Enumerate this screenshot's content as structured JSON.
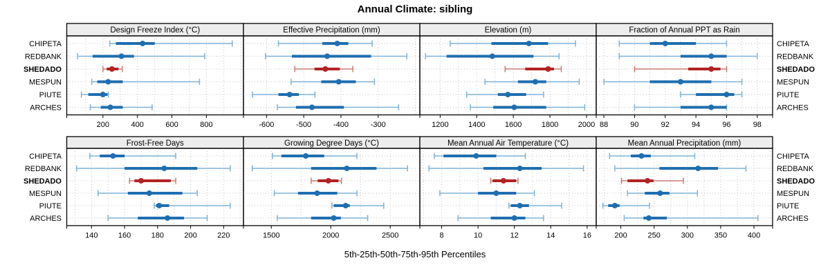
{
  "chart_data": {
    "type": "scatter",
    "subtype": "trellis-percentile-whisker-panels",
    "title": "Annual Climate: sibling",
    "caption": "5th-25th-50th-75th-95th Percentiles",
    "percentiles": [
      5,
      25,
      50,
      75,
      95
    ],
    "sites": [
      "CHIPETA",
      "REDBANK",
      "SHEDADO",
      "MESPUN",
      "PIUTE",
      "ARCHES"
    ],
    "highlight_site": "SHEDADO",
    "legend_position": "none",
    "grid": "dotted",
    "colors": {
      "series_thick": "#1f6eb0",
      "series_thin": "#7fb2d7",
      "highlight_thick": "#b22222",
      "highlight_thin": "#cb7a72",
      "strip_bg": "#ededed",
      "grid_line": "#c3c3c3",
      "border": "#000000"
    },
    "panels": [
      {
        "label": "Design Freeze Index (°C)",
        "row": 0,
        "col": 0,
        "xlim": [
          -10,
          1015
        ],
        "ticks": [
          200,
          400,
          600,
          800
        ],
        "grid_step": 100,
        "values": [
          [
            240,
            275,
            430,
            500,
            950
          ],
          [
            53,
            140,
            307,
            380,
            790
          ],
          [
            200,
            222,
            252,
            290,
            312
          ],
          [
            135,
            167,
            230,
            315,
            760
          ],
          [
            75,
            115,
            200,
            227,
            232
          ],
          [
            127,
            187,
            243,
            315,
            485
          ]
        ]
      },
      {
        "label": "Effective Precipitation (mm)",
        "row": 0,
        "col": 1,
        "xlim": [
          -662,
          -188
        ],
        "ticks": [
          -600,
          -500,
          -400,
          -300
        ],
        "grid_step": 100,
        "values": [
          [
            -568,
            -450,
            -410,
            -380,
            -316
          ],
          [
            -603,
            -532,
            -437,
            -319,
            -223
          ],
          [
            -524,
            -471,
            -442,
            -403,
            -368
          ],
          [
            -534,
            -453,
            -406,
            -360,
            -310
          ],
          [
            -638,
            -568,
            -538,
            -513,
            -470
          ],
          [
            -571,
            -521,
            -478,
            -392,
            -245
          ]
        ]
      },
      {
        "label": "Elevation (m)",
        "row": 0,
        "col": 2,
        "xlim": [
          1089,
          2053
        ],
        "ticks": [
          1200,
          1400,
          1600,
          1800,
          2000
        ],
        "grid_step": 100,
        "values": [
          [
            1255,
            1480,
            1685,
            1790,
            1940
          ],
          [
            1120,
            1235,
            1485,
            1710,
            1850
          ],
          [
            1555,
            1665,
            1790,
            1822,
            1862
          ],
          [
            1445,
            1625,
            1720,
            1780,
            1960
          ],
          [
            1345,
            1515,
            1570,
            1670,
            1765
          ],
          [
            1365,
            1490,
            1605,
            1780,
            1990
          ]
        ]
      },
      {
        "label": "Fraction of Annual PPT as Rain",
        "row": 0,
        "col": 3,
        "xlim": [
          87.5,
          99.0
        ],
        "ticks": [
          88,
          90,
          92,
          94,
          96,
          98
        ],
        "grid_step": 1,
        "values": [
          [
            89,
            91,
            92,
            94,
            96
          ],
          [
            89,
            93,
            95,
            96,
            98
          ],
          [
            90,
            93.5,
            95,
            95.6,
            96
          ],
          [
            88,
            91,
            93,
            95,
            97
          ],
          [
            93,
            94,
            96,
            96.5,
            97
          ],
          [
            90,
            93,
            95,
            96,
            96
          ]
        ]
      },
      {
        "label": "Frost-Free Days",
        "row": 1,
        "col": 0,
        "xlim": [
          125,
          232
        ],
        "ticks": [
          140,
          160,
          180,
          200,
          220
        ],
        "grid_step": 10,
        "values": [
          [
            139,
            145,
            153,
            160,
            191
          ],
          [
            131,
            160,
            184,
            204,
            224
          ],
          [
            163,
            166,
            170,
            188,
            191
          ],
          [
            144,
            162,
            175,
            195,
            204
          ],
          [
            178,
            179,
            181,
            187,
            224
          ],
          [
            150,
            168,
            186,
            196,
            210
          ]
        ]
      },
      {
        "label": "Growing Degree Days (°C)",
        "row": 1,
        "col": 1,
        "xlim": [
          1266,
          2749
        ],
        "ticks": [
          1500,
          2000,
          2500
        ],
        "grid_step": 250,
        "values": [
          [
            1510,
            1585,
            1790,
            1945,
            2220
          ],
          [
            1340,
            1835,
            2135,
            2385,
            2645
          ],
          [
            1835,
            1890,
            1980,
            2065,
            2090
          ],
          [
            1525,
            1725,
            1885,
            2055,
            2220
          ],
          [
            2010,
            2025,
            2125,
            2160,
            2445
          ],
          [
            1550,
            1835,
            2025,
            2085,
            2310
          ]
        ]
      },
      {
        "label": "Mean Annual Air Temperature (°C)",
        "row": 1,
        "col": 2,
        "xlim": [
          6.8,
          16.5
        ],
        "ticks": [
          8,
          10,
          12,
          14,
          16
        ],
        "grid_step": 1,
        "values": [
          [
            7.6,
            8.1,
            9.9,
            11.0,
            12.6
          ],
          [
            7.3,
            10.3,
            12.3,
            13.5,
            15.8
          ],
          [
            10.7,
            10.8,
            11.4,
            12.1,
            12.2
          ],
          [
            7.9,
            10.0,
            11.0,
            12.1,
            13.1
          ],
          [
            11.7,
            11.8,
            12.3,
            12.8,
            14.6
          ],
          [
            8.9,
            10.7,
            12.0,
            12.6,
            13.6
          ]
        ]
      },
      {
        "label": "Mean Annual Precipitation (mm)",
        "row": 1,
        "col": 3,
        "xlim": [
          163,
          428
        ],
        "ticks": [
          200,
          250,
          300,
          350,
          400
        ],
        "grid_step": 25,
        "values": [
          [
            183,
            215,
            231,
            245,
            311
          ],
          [
            191,
            258,
            316,
            346,
            388
          ],
          [
            201,
            210,
            240,
            249,
            294
          ],
          [
            210,
            236,
            259,
            273,
            315
          ],
          [
            173,
            181,
            191,
            198,
            243
          ],
          [
            205,
            234,
            242,
            269,
            406
          ]
        ]
      }
    ]
  }
}
